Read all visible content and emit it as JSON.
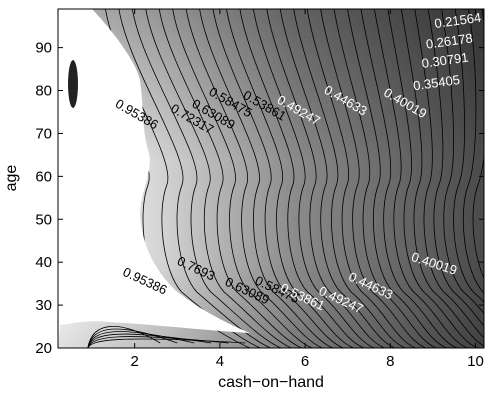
{
  "chart_data": {
    "type": "contour",
    "xlabel": "cash−on−hand",
    "ylabel": "age",
    "xlim": [
      0.2,
      10.2
    ],
    "ylim": [
      20,
      99
    ],
    "x_ticks": [
      2,
      4,
      6,
      8,
      10
    ],
    "y_ticks": [
      20,
      30,
      40,
      50,
      60,
      70,
      80,
      90
    ],
    "grid": false,
    "colormap": "gray",
    "contour_levels": [
      0.21564,
      0.26178,
      0.30791,
      0.35405,
      0.40019,
      0.44633,
      0.49247,
      0.53861,
      0.58475,
      0.63089,
      0.7693,
      0.72317,
      0.95386
    ],
    "labels": [
      {
        "text": "0.21564",
        "x": 9.6,
        "y": 95.3
      },
      {
        "text": "0.26178",
        "x": 9.4,
        "y": 90.5
      },
      {
        "text": "0.30791",
        "x": 9.3,
        "y": 86.0
      },
      {
        "text": "0.35405",
        "x": 9.1,
        "y": 80.8
      },
      {
        "text": "0.40019",
        "x": 8.3,
        "y": 76.2
      },
      {
        "text": "0.44633",
        "x": 6.9,
        "y": 76.8
      },
      {
        "text": "0.49247",
        "x": 5.8,
        "y": 74.5
      },
      {
        "text": "0.53861",
        "x": 5.0,
        "y": 75.6
      },
      {
        "text": "0.58475",
        "x": 4.2,
        "y": 76.4
      },
      {
        "text": "0.63089",
        "x": 3.8,
        "y": 73.6
      },
      {
        "text": "0.72317",
        "x": 3.3,
        "y": 72.5
      },
      {
        "text": "0.95386",
        "x": 2.0,
        "y": 73.6
      },
      {
        "text": "0.95386",
        "x": 2.2,
        "y": 34.7
      },
      {
        "text": "0.7693",
        "x": 3.4,
        "y": 37.6
      },
      {
        "text": "0.63089",
        "x": 4.6,
        "y": 32.4
      },
      {
        "text": "0.58475",
        "x": 5.3,
        "y": 32.7
      },
      {
        "text": "0.53861",
        "x": 5.9,
        "y": 31.0
      },
      {
        "text": "0.49247",
        "x": 6.8,
        "y": 30.3
      },
      {
        "text": "0.44633",
        "x": 7.5,
        "y": 33.6
      },
      {
        "text": "0.40019",
        "x": 9.0,
        "y": 38.7
      }
    ]
  }
}
